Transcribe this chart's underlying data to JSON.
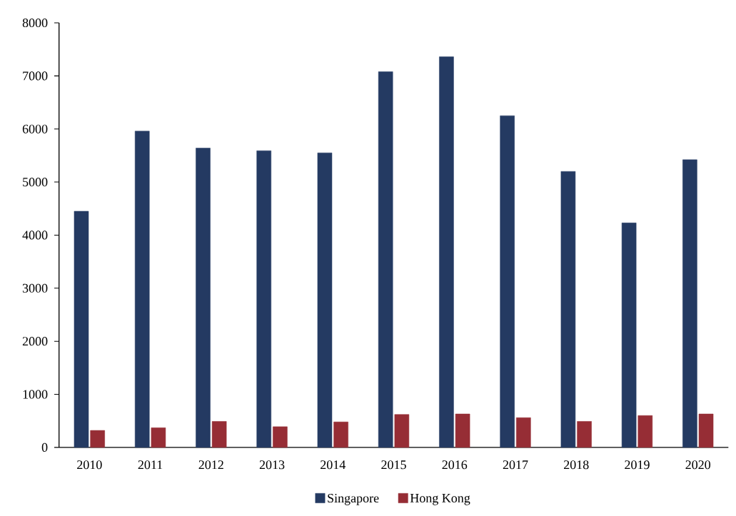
{
  "chart_data": {
    "type": "bar",
    "categories": [
      "2010",
      "2011",
      "2012",
      "2013",
      "2014",
      "2015",
      "2016",
      "2017",
      "2018",
      "2019",
      "2020"
    ],
    "series": [
      {
        "name": "Singapore",
        "color": "#243a62",
        "values": [
          4450,
          5960,
          5640,
          5590,
          5550,
          7080,
          7360,
          6250,
          5200,
          4230,
          5420
        ]
      },
      {
        "name": "Hong Kong",
        "color": "#962d35",
        "values": [
          320,
          370,
          490,
          390,
          480,
          620,
          630,
          560,
          490,
          600,
          630
        ]
      }
    ],
    "ylim": [
      0,
      8000
    ],
    "yticks": [
      0,
      1000,
      2000,
      3000,
      4000,
      5000,
      6000,
      7000,
      8000
    ],
    "grid": false,
    "legend": "bottom"
  }
}
